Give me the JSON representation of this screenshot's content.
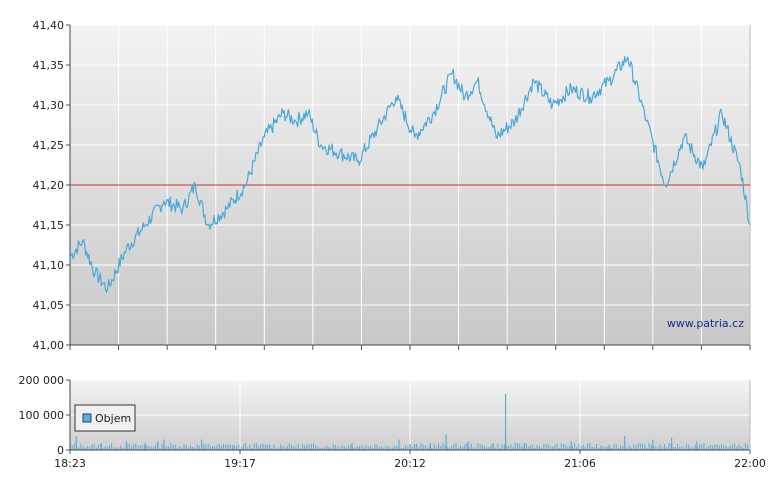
{
  "chart_data": [
    {
      "type": "line",
      "title": "",
      "xlabel": "",
      "ylabel": "",
      "ylim": [
        41.0,
        41.4
      ],
      "yticks": [
        "41,00",
        "41,05",
        "41,10",
        "41,15",
        "41,20",
        "41,25",
        "41,30",
        "41,35",
        "41,40"
      ],
      "x_ticks": [
        "18:23",
        "19:17",
        "20:12",
        "21:06",
        "22:00"
      ],
      "x_range": [
        "18:23",
        "22:00"
      ],
      "grid": true,
      "reference_line": {
        "value": 41.2,
        "color": "#cc3333"
      },
      "watermark": "www.patria.cz",
      "line_color": "#4aa8d8",
      "series": [
        {
          "name": "",
          "x_minutes_from_start": [
            0,
            4,
            8,
            12,
            18,
            24,
            30,
            36,
            40,
            44,
            50,
            56,
            62,
            68,
            72,
            76,
            80,
            86,
            92,
            98,
            104,
            110,
            116,
            122,
            126,
            130,
            136,
            142,
            148,
            154,
            160,
            166,
            172,
            178,
            184,
            190,
            196,
            202,
            208,
            214,
            217
          ],
          "values": [
            41.11,
            41.13,
            41.09,
            41.07,
            41.12,
            41.15,
            41.18,
            41.17,
            41.2,
            41.15,
            41.17,
            41.2,
            41.26,
            41.29,
            41.28,
            41.29,
            41.25,
            41.24,
            41.23,
            41.27,
            41.31,
            41.26,
            41.29,
            41.34,
            41.31,
            41.33,
            41.26,
            41.28,
            41.33,
            41.3,
            41.32,
            41.31,
            41.33,
            41.36,
            41.28,
            41.2,
            41.26,
            41.22,
            41.29,
            41.22,
            41.15
          ]
        }
      ]
    },
    {
      "type": "bar",
      "title": "",
      "ylim": [
        0,
        200000
      ],
      "yticks": [
        "0",
        "100 000",
        "200 000"
      ],
      "x_ticks": [
        "18:23",
        "19:17",
        "20:12",
        "21:06",
        "22:00"
      ],
      "legend": {
        "label": "Objem",
        "position": "left"
      },
      "bar_color": "#5aaed8",
      "series": [
        {
          "name": "Objem",
          "x_minutes_from_start": [
            2,
            10,
            18,
            24,
            28,
            30,
            42,
            52,
            63,
            90,
            105,
            110,
            115,
            120,
            127,
            135,
            139,
            145,
            160,
            172,
            177,
            186,
            192,
            200
          ],
          "values": [
            40000,
            20000,
            25000,
            20000,
            25000,
            30000,
            30000,
            15000,
            15000,
            20000,
            30000,
            15000,
            20000,
            45000,
            25000,
            20000,
            160000,
            20000,
            25000,
            15000,
            40000,
            30000,
            35000,
            25000
          ]
        }
      ]
    }
  ]
}
